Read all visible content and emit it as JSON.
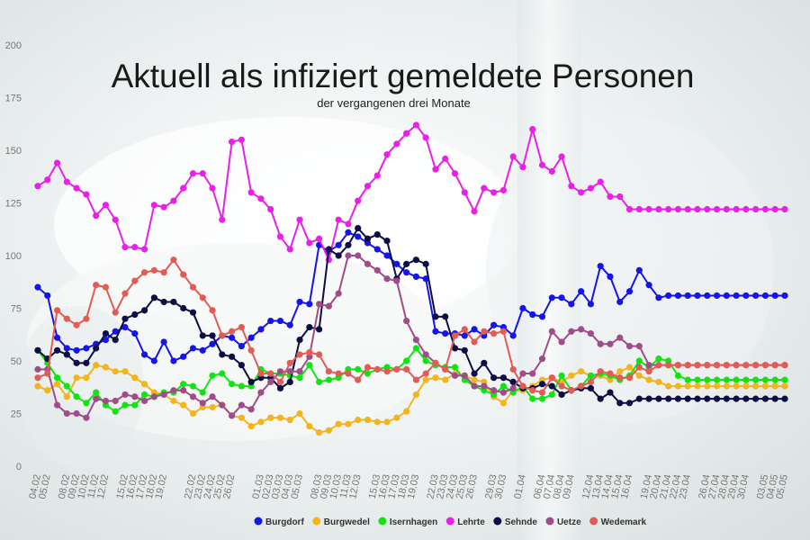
{
  "chart_data": {
    "type": "line",
    "title": "Aktuell als infiziert gemeldete Personen",
    "subtitle": "der vergangenen drei Monate",
    "xlabel": "",
    "ylabel": "",
    "ylim": [
      0,
      200
    ],
    "yticks": [
      0,
      25,
      50,
      75,
      100,
      125,
      150,
      175,
      200
    ],
    "grid": false,
    "legend_position": "bottom",
    "x": [
      "04.02",
      "05.02",
      "07.02",
      "08.02",
      "09.02",
      "10.02",
      "11.02",
      "12.02",
      "13.02",
      "15.02",
      "16.02",
      "17.02",
      "18.02",
      "19.02",
      "20.02",
      "21.02",
      "22.02",
      "23.02",
      "24.02",
      "25.02",
      "26.02",
      "27.02",
      "28.02",
      "01.03",
      "02.03",
      "03.03",
      "04.03",
      "05.03",
      "06.03",
      "08.03",
      "09.03",
      "10.03",
      "11.03",
      "12.03",
      "13.03",
      "15.03",
      "16.03",
      "17.03",
      "18.03",
      "19.03",
      "20.03",
      "22.03",
      "23.03",
      "24.03",
      "25.03",
      "26.03",
      "27.03",
      "29.03",
      "30.03",
      "31.03",
      "01.04",
      "03.04",
      "06.04",
      "07.04",
      "08.04",
      "09.04",
      "10.04",
      "12.04",
      "13.04",
      "14.04",
      "15.04",
      "16.04",
      "17.04",
      "19.04",
      "20.04",
      "21.04",
      "22.04",
      "23.04",
      "24.04",
      "26.04",
      "27.04",
      "28.04",
      "29.04",
      "30.04",
      "02.05",
      "03.05",
      "04.05",
      "05.05"
    ],
    "x_tick_labels": [
      "04.02",
      "05.02",
      "08.02",
      "09.02",
      "10.02",
      "11.02",
      "12.02",
      "15.02",
      "16.02",
      "17.02",
      "18.02",
      "19.02",
      "22.02",
      "23.02",
      "24.02",
      "25.02",
      "26.02",
      "01.03",
      "02.03",
      "03.03",
      "04.03",
      "05.03",
      "08.03",
      "09.03",
      "10.03",
      "11.03",
      "12.03",
      "15.03",
      "16.03",
      "17.03",
      "18.03",
      "19.03",
      "22.03",
      "23.03",
      "24.03",
      "25.03",
      "26.03",
      "29.03",
      "30.03",
      "01.04",
      "06.04",
      "07.04",
      "08.04",
      "09.04",
      "12.04",
      "13.04",
      "14.04",
      "15.04",
      "16.04",
      "19.04",
      "20.04",
      "21.04",
      "22.04",
      "23.04",
      "26.04",
      "27.04",
      "28.04",
      "29.04",
      "30.04",
      "03.05",
      "04.05",
      "05.05"
    ],
    "series": [
      {
        "name": "Burgdorf",
        "color": "#1515e8",
        "values": [
          85,
          81,
          61,
          56,
          55,
          56,
          58,
          60,
          64,
          66,
          63,
          53,
          50,
          59,
          50,
          52,
          56,
          55,
          58,
          62,
          61,
          57,
          61,
          65,
          69,
          69,
          67,
          78,
          77,
          105,
          102,
          105,
          111,
          109,
          106,
          103,
          100,
          96,
          92,
          90,
          89,
          64,
          63,
          63,
          62,
          65,
          62,
          67,
          66,
          62,
          75,
          72,
          71,
          80,
          80,
          77,
          83,
          77,
          95,
          90,
          78,
          83,
          93,
          86,
          80,
          81,
          81,
          81,
          81,
          81,
          81,
          81,
          81,
          81,
          81,
          81,
          81,
          81
        ]
      },
      {
        "name": "Burgwedel",
        "color": "#f3b51d",
        "values": [
          38,
          36,
          39,
          33,
          42,
          42,
          48,
          47,
          45,
          45,
          42,
          39,
          35,
          34,
          31,
          29,
          25,
          28,
          28,
          29,
          24,
          23,
          19,
          21,
          23,
          23,
          22,
          25,
          19,
          16,
          17,
          20,
          20,
          22,
          22,
          21,
          21,
          23,
          26,
          34,
          41,
          42,
          41,
          44,
          43,
          41,
          40,
          33,
          30,
          36,
          36,
          38,
          41,
          42,
          40,
          43,
          45,
          43,
          43,
          41,
          45,
          47,
          43,
          41,
          40,
          38,
          38,
          38,
          38,
          38,
          38,
          38,
          38,
          38,
          38,
          38,
          38,
          38
        ]
      },
      {
        "name": "Isernhagen",
        "color": "#12e312",
        "values": [
          55,
          49,
          42,
          38,
          33,
          30,
          35,
          29,
          26,
          29,
          29,
          34,
          33,
          35,
          35,
          39,
          38,
          35,
          43,
          44,
          39,
          38,
          38,
          46,
          44,
          44,
          43,
          42,
          48,
          40,
          41,
          42,
          46,
          46,
          44,
          46,
          47,
          46,
          50,
          56,
          50,
          48,
          47,
          47,
          41,
          38,
          36,
          34,
          38,
          35,
          38,
          32,
          32,
          34,
          43,
          36,
          38,
          43,
          44,
          43,
          41,
          43,
          50,
          47,
          51,
          50,
          43,
          41,
          41,
          41,
          41,
          41,
          41,
          41,
          41,
          41,
          41,
          41
        ]
      },
      {
        "name": "Lehrte",
        "color": "#e820e8",
        "values": [
          133,
          136,
          144,
          135,
          132,
          129,
          119,
          124,
          117,
          104,
          104,
          103,
          124,
          123,
          126,
          132,
          139,
          139,
          132,
          117,
          154,
          155,
          130,
          127,
          122,
          109,
          103,
          117,
          106,
          108,
          98,
          117,
          115,
          126,
          133,
          138,
          148,
          153,
          158,
          162,
          156,
          141,
          146,
          139,
          130,
          121,
          132,
          130,
          131,
          147,
          142,
          160,
          143,
          140,
          147,
          133,
          130,
          132,
          135,
          128,
          128,
          122,
          122,
          122,
          122,
          122,
          122,
          122,
          122,
          122,
          122,
          122,
          122,
          122,
          122,
          122,
          122,
          122
        ]
      },
      {
        "name": "Sehnde",
        "color": "#0e0e44",
        "values": [
          55,
          51,
          55,
          53,
          49,
          49,
          56,
          63,
          60,
          70,
          72,
          74,
          80,
          78,
          78,
          75,
          73,
          62,
          62,
          53,
          52,
          48,
          40,
          42,
          42,
          37,
          40,
          60,
          66,
          65,
          103,
          100,
          105,
          113,
          108,
          110,
          107,
          89,
          96,
          98,
          96,
          71,
          71,
          56,
          55,
          44,
          49,
          42,
          42,
          40,
          37,
          37,
          39,
          38,
          34,
          36,
          37,
          37,
          32,
          35,
          30,
          30,
          32,
          32,
          32,
          32,
          32,
          32,
          32,
          32,
          32,
          32,
          32,
          32,
          32,
          32,
          32,
          32
        ]
      },
      {
        "name": "Uetze",
        "color": "#a14c8a",
        "values": [
          46,
          46,
          29,
          25,
          25,
          23,
          32,
          31,
          31,
          34,
          33,
          31,
          33,
          34,
          36,
          36,
          33,
          30,
          33,
          29,
          24,
          29,
          27,
          35,
          40,
          45,
          45,
          45,
          52,
          77,
          76,
          82,
          100,
          100,
          96,
          93,
          89,
          88,
          69,
          60,
          53,
          49,
          46,
          43,
          43,
          38,
          38,
          36,
          35,
          37,
          44,
          44,
          51,
          64,
          59,
          64,
          65,
          63,
          58,
          58,
          61,
          57,
          57,
          48,
          48,
          48,
          48,
          48,
          48,
          48,
          48,
          48,
          48,
          48,
          48,
          48,
          48,
          48
        ]
      },
      {
        "name": "Wedemark",
        "color": "#e15c55",
        "values": [
          42,
          44,
          74,
          70,
          67,
          70,
          86,
          85,
          73,
          82,
          88,
          92,
          93,
          92,
          98,
          91,
          85,
          80,
          74,
          62,
          64,
          66,
          55,
          44,
          44,
          40,
          49,
          53,
          54,
          53,
          45,
          44,
          44,
          41,
          47,
          46,
          45,
          46,
          46,
          41,
          44,
          49,
          46,
          62,
          65,
          59,
          64,
          63,
          64,
          46,
          38,
          36,
          35,
          42,
          38,
          36,
          38,
          40,
          45,
          44,
          42,
          42,
          47,
          45,
          48,
          48,
          48,
          48,
          48,
          48,
          48,
          48,
          48,
          48,
          48,
          48,
          48,
          48
        ]
      }
    ]
  }
}
